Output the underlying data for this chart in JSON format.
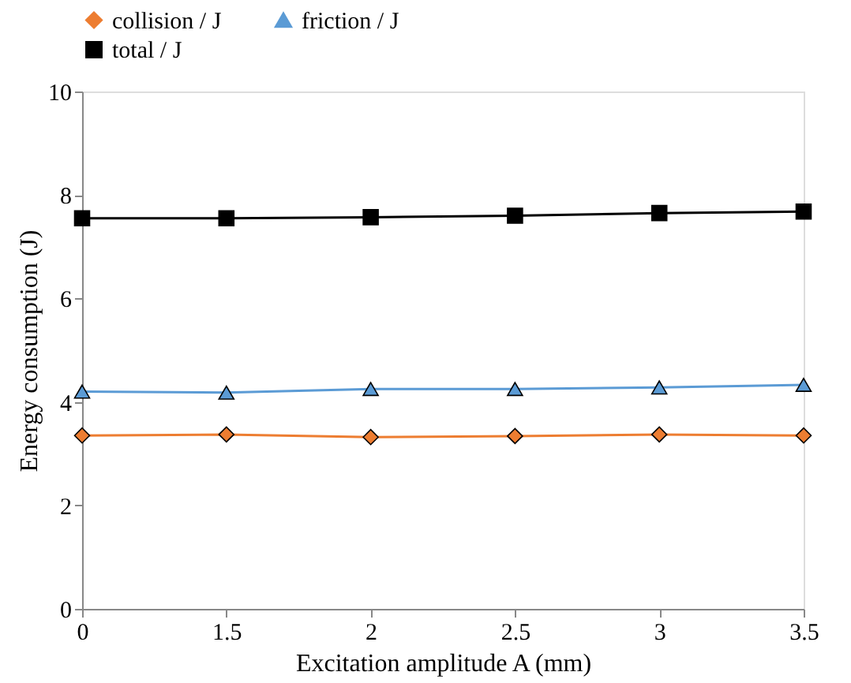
{
  "chart_data": {
    "type": "line",
    "xlabel": "Excitation amplitude A (mm)",
    "ylabel": "Energy consumption (J)",
    "categories": [
      "0",
      "1.5",
      "2",
      "2.5",
      "3",
      "3.5"
    ],
    "series": [
      {
        "name": "collision / J",
        "color": "#ed7d31",
        "marker": "diamond",
        "values": [
          3.35,
          3.37,
          3.32,
          3.34,
          3.37,
          3.35
        ]
      },
      {
        "name": "friction / J",
        "color": "#5b9bd5",
        "marker": "triangle",
        "values": [
          4.2,
          4.18,
          4.25,
          4.25,
          4.28,
          4.33
        ]
      },
      {
        "name": "total / J",
        "color": "#000000",
        "marker": "square",
        "values": [
          7.55,
          7.55,
          7.57,
          7.6,
          7.65,
          7.68
        ]
      }
    ],
    "ylim": [
      0,
      10
    ],
    "yticks": [
      0,
      2,
      4,
      6,
      8,
      10
    ],
    "grid": false,
    "legend": "top",
    "line_style": "solid"
  }
}
